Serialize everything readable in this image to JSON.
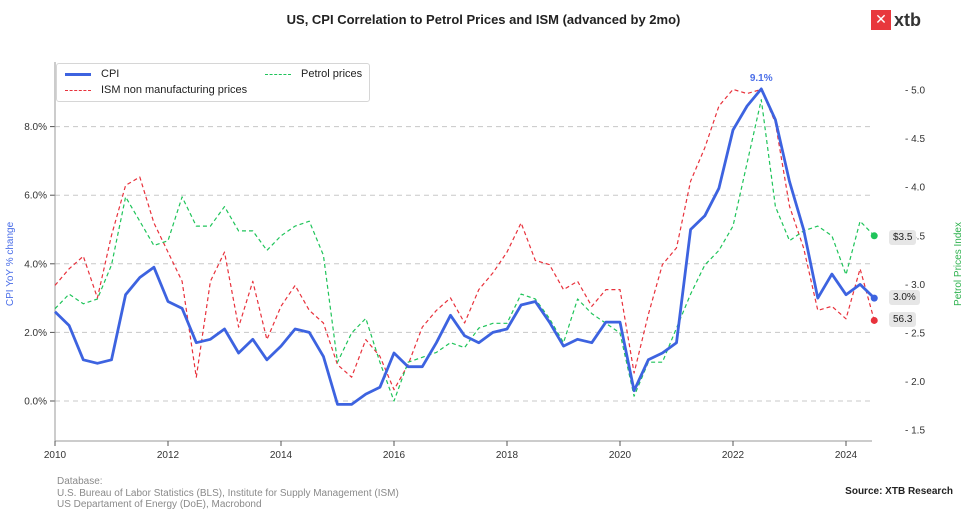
{
  "header": {
    "title": "US, CPI Correlation to Petrol Prices and ISM (advanced by 2mo)",
    "logo_mark": "✕",
    "logo_text": "xtb"
  },
  "footer": {
    "database_label": "Database:",
    "sources_line1": "U.S. Bureau of Labor Statistics (BLS), Institute for Supply Management (ISM)",
    "sources_line2": "US Departament of Energy (DoE), Macrobond",
    "source_credit": "Source: XTB Research"
  },
  "colors": {
    "cpi": "#3d63e0",
    "ism": "#e8323c",
    "petrol": "#1fc45a",
    "grid": "#c8c8c8",
    "axis_text": "#333333"
  },
  "chart_data": {
    "type": "line",
    "title": "US, CPI Correlation to Petrol Prices and ISM (advanced by 2mo)",
    "xlabel": "",
    "ylabel": "CPI YoY % change",
    "y2label": "Petrol Prices Index",
    "xlim": [
      2010.0,
      2024.75
    ],
    "ylim": [
      -1.0,
      9.3
    ],
    "y2lim": [
      1.4,
      5.1
    ],
    "x_ticks": [
      "2010",
      "2012",
      "2014",
      "2016",
      "2018",
      "2020",
      "2022",
      "2024"
    ],
    "y_ticks": [
      "0.0%",
      "2.0%",
      "4.0%",
      "6.0%",
      "8.0%"
    ],
    "y2_ticks": [
      "1.5",
      "2.0",
      "2.5",
      "3.0",
      "3.5",
      "4.0",
      "4.5",
      "5.0"
    ],
    "grid": "horizontal-dashed",
    "legend": {
      "placement": "top-left",
      "entries": [
        "CPI",
        "ISM non manufacturing prices",
        "Petrol prices"
      ]
    },
    "annotations": [
      {
        "series": "CPI",
        "text": "9.1%",
        "at": "peak"
      },
      {
        "series": "Petrol prices",
        "text": "$3.5",
        "at": "last"
      },
      {
        "series": "CPI",
        "text": "3.0%",
        "at": "last"
      },
      {
        "series": "ISM non manufacturing prices",
        "text": "56.3",
        "at": "last"
      }
    ],
    "x": [
      2010.0,
      2010.25,
      2010.5,
      2010.75,
      2011.0,
      2011.25,
      2011.5,
      2011.75,
      2012.0,
      2012.25,
      2012.5,
      2012.75,
      2013.0,
      2013.25,
      2013.5,
      2013.75,
      2014.0,
      2014.25,
      2014.5,
      2014.75,
      2015.0,
      2015.25,
      2015.5,
      2015.75,
      2016.0,
      2016.25,
      2016.5,
      2016.75,
      2017.0,
      2017.25,
      2017.5,
      2017.75,
      2018.0,
      2018.25,
      2018.5,
      2018.75,
      2019.0,
      2019.25,
      2019.5,
      2019.75,
      2020.0,
      2020.25,
      2020.5,
      2020.75,
      2021.0,
      2021.25,
      2021.5,
      2021.75,
      2022.0,
      2022.25,
      2022.5,
      2022.75,
      2023.0,
      2023.25,
      2023.5,
      2023.75,
      2024.0,
      2024.25,
      2024.5
    ],
    "series": [
      {
        "name": "CPI",
        "axis": "left",
        "unit": "%",
        "values": [
          2.6,
          2.2,
          1.2,
          1.1,
          1.2,
          3.1,
          3.6,
          3.9,
          2.9,
          2.7,
          1.7,
          1.8,
          2.1,
          1.4,
          1.8,
          1.2,
          1.6,
          2.1,
          2.0,
          1.3,
          -0.1,
          -0.1,
          0.2,
          0.4,
          1.4,
          1.0,
          1.0,
          1.7,
          2.5,
          1.9,
          1.7,
          2.0,
          2.1,
          2.8,
          2.9,
          2.3,
          1.6,
          1.8,
          1.7,
          2.3,
          2.3,
          0.3,
          1.2,
          1.4,
          1.7,
          5.0,
          5.4,
          6.2,
          7.9,
          8.6,
          9.1,
          8.2,
          6.4,
          5.0,
          3.0,
          3.7,
          3.1,
          3.4,
          3.0
        ]
      },
      {
        "name": "ISM non manufacturing prices",
        "axis": "hidden",
        "unit": "index",
        "values": [
          60.5,
          62.5,
          64.0,
          59.0,
          66.5,
          72.5,
          73.5,
          68.0,
          64.5,
          61.0,
          49.5,
          61.0,
          64.5,
          55.5,
          61.0,
          54.0,
          58.0,
          60.5,
          57.5,
          56.0,
          51.0,
          49.5,
          54.0,
          52.0,
          48.0,
          51.0,
          55.5,
          57.5,
          59.0,
          56.0,
          60.0,
          62.0,
          64.5,
          68.0,
          63.5,
          63.0,
          60.0,
          61.0,
          58.0,
          60.0,
          60.0,
          50.0,
          57.0,
          63.0,
          65.0,
          73.0,
          77.0,
          82.0,
          84.0,
          83.5,
          84.0,
          80.0,
          70.0,
          65.0,
          57.5,
          58.0,
          56.5,
          62.5,
          56.3
        ]
      },
      {
        "name": "Petrol prices",
        "axis": "right",
        "unit": "USD/gal",
        "values": [
          2.75,
          2.9,
          2.8,
          2.85,
          3.2,
          3.9,
          3.65,
          3.4,
          3.45,
          3.9,
          3.6,
          3.6,
          3.8,
          3.55,
          3.55,
          3.35,
          3.5,
          3.6,
          3.65,
          3.3,
          2.2,
          2.5,
          2.65,
          2.2,
          1.8,
          2.2,
          2.25,
          2.3,
          2.4,
          2.35,
          2.55,
          2.6,
          2.6,
          2.9,
          2.85,
          2.65,
          2.4,
          2.85,
          2.7,
          2.6,
          2.5,
          1.85,
          2.2,
          2.2,
          2.55,
          2.9,
          3.2,
          3.35,
          3.6,
          4.25,
          4.9,
          3.8,
          3.45,
          3.55,
          3.6,
          3.5,
          3.1,
          3.65,
          3.5
        ]
      }
    ]
  }
}
